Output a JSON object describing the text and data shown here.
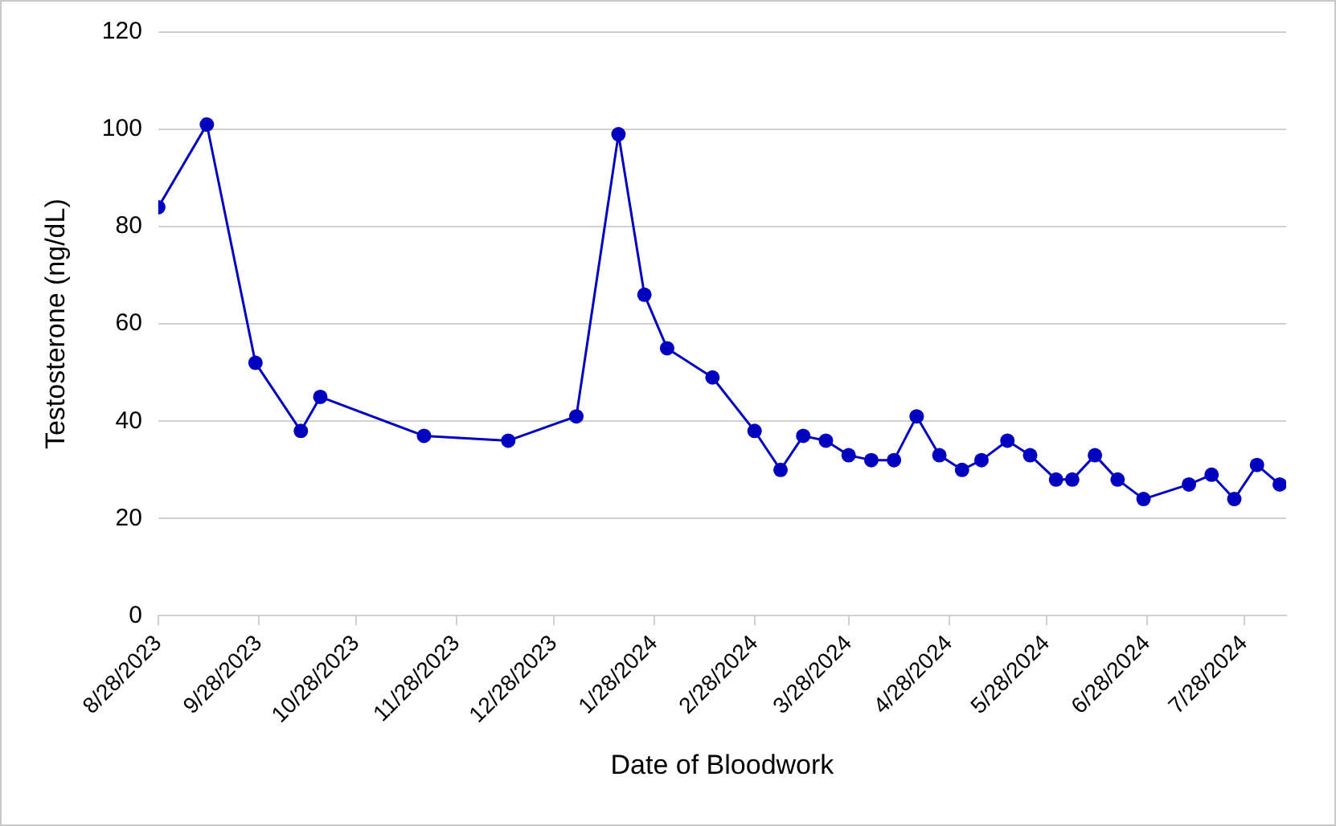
{
  "chart_data": {
    "type": "line",
    "xlabel": "Date of Bloodwork",
    "ylabel": "Testosterone (ng/dL)",
    "x": [
      "2023-08-28",
      "2023-09-12",
      "2023-09-27",
      "2023-10-11",
      "2023-10-17",
      "2023-11-18",
      "2023-12-14",
      "2024-01-04",
      "2024-01-17",
      "2024-01-25",
      "2024-02-01",
      "2024-02-15",
      "2024-02-28",
      "2024-03-07",
      "2024-03-14",
      "2024-03-21",
      "2024-03-28",
      "2024-04-04",
      "2024-04-11",
      "2024-04-18",
      "2024-04-25",
      "2024-05-02",
      "2024-05-08",
      "2024-05-16",
      "2024-05-23",
      "2024-05-31",
      "2024-06-05",
      "2024-06-12",
      "2024-06-19",
      "2024-06-27",
      "2024-07-11",
      "2024-07-18",
      "2024-07-25",
      "2024-08-01",
      "2024-08-08"
    ],
    "series": [
      {
        "color": "#0000c0",
        "values": [
          84,
          101,
          52,
          38,
          45,
          37,
          36,
          41,
          99,
          66,
          55,
          49,
          38,
          30,
          37,
          36,
          33,
          32,
          32,
          41,
          33,
          30,
          32,
          36,
          33,
          28,
          28,
          33,
          28,
          24,
          27,
          29,
          24,
          31,
          27
        ]
      }
    ],
    "xlim": [
      "2023-08-28",
      "2024-08-10"
    ],
    "xticks": [
      {
        "value": "2023-08-28",
        "label": "8/28/2023"
      },
      {
        "value": "2023-09-28",
        "label": "9/28/2023"
      },
      {
        "value": "2023-10-28",
        "label": "10/28/2023"
      },
      {
        "value": "2023-11-28",
        "label": "11/28/2023"
      },
      {
        "value": "2023-12-28",
        "label": "12/28/2023"
      },
      {
        "value": "2024-01-28",
        "label": "1/28/2024"
      },
      {
        "value": "2024-02-28",
        "label": "2/28/2024"
      },
      {
        "value": "2024-03-28",
        "label": "3/28/2024"
      },
      {
        "value": "2024-04-28",
        "label": "4/28/2024"
      },
      {
        "value": "2024-05-28",
        "label": "5/28/2024"
      },
      {
        "value": "2024-06-28",
        "label": "6/28/2024"
      },
      {
        "value": "2024-07-28",
        "label": "7/28/2024"
      }
    ],
    "ylim": [
      0,
      120
    ],
    "yticks": [
      0,
      20,
      40,
      60,
      80,
      100,
      120
    ],
    "grid": "y",
    "legend": false,
    "marker": "circle",
    "line_style": "solid"
  }
}
